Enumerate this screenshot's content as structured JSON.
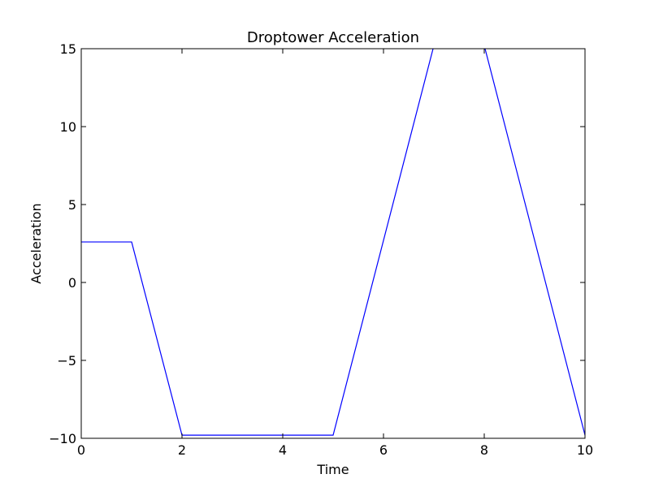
{
  "chart_data": {
    "type": "line",
    "title": "Droptower Acceleration",
    "xlabel": "Time",
    "ylabel": "Acceleration",
    "xlim": [
      0,
      10
    ],
    "ylim": [
      -10,
      15
    ],
    "grid": false,
    "x_ticks": [
      0,
      2,
      4,
      6,
      8,
      10
    ],
    "y_ticks": [
      -10,
      -5,
      0,
      5,
      10,
      15
    ],
    "x_tick_labels": [
      "0",
      "2",
      "4",
      "6",
      "8",
      "10"
    ],
    "y_tick_labels": [
      "−10",
      "−5",
      "0",
      "5",
      "10",
      "15"
    ],
    "series": [
      {
        "color": "#0000ff",
        "x": [
          0,
          1,
          2,
          5,
          7,
          8,
          10
        ],
        "y": [
          2.6,
          2.6,
          -9.8,
          -9.8,
          15.2,
          15.2,
          -9.8
        ]
      }
    ]
  }
}
